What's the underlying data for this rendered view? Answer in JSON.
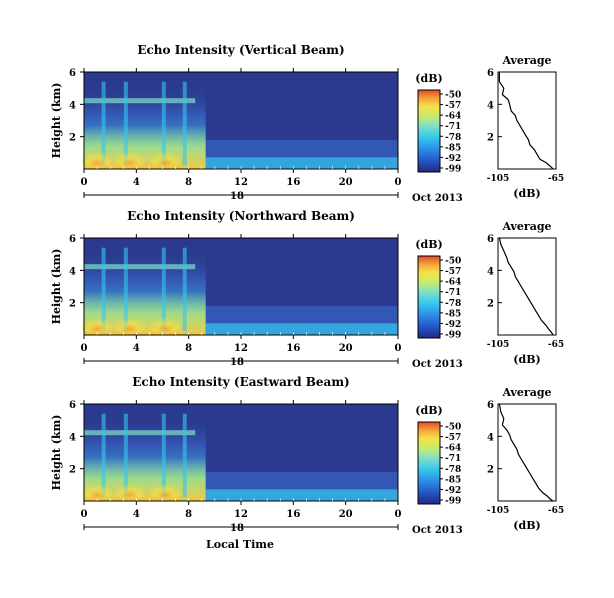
{
  "figure": {
    "colorbar_unit": "(dB)",
    "colorbar_ticks": [
      "-50",
      "-57",
      "-64",
      "-71",
      "-78",
      "-85",
      "-92",
      "-99"
    ],
    "date_label": "Oct 2013",
    "day_label": "18",
    "x_axis_title": "Local Time",
    "y_axis_title": "Height (km)",
    "avg_title": "Average",
    "avg_xlabel": "(dB)"
  },
  "colors": {
    "background_low": "#2b3a8f",
    "colormap": [
      "#222a80",
      "#2456c8",
      "#2d8fe6",
      "#34c7ee",
      "#7fe0c8",
      "#c8ec6a",
      "#f4e24a",
      "#f4a23a",
      "#e44a26"
    ]
  },
  "chart_data": [
    {
      "type": "heatmap",
      "title": "Echo Intensity (Vertical Beam)",
      "xlabel": "",
      "ylabel": "Height (km)",
      "x_ticks": [
        "0",
        "4",
        "8",
        "12",
        "16",
        "20",
        "0"
      ],
      "y_ticks": [
        "6",
        "4",
        "2"
      ],
      "xlim": [
        0,
        24
      ],
      "ylim": [
        0,
        6
      ],
      "colorbar": {
        "label": "(dB)",
        "range": [
          -99,
          -50
        ]
      }
    },
    {
      "type": "heatmap",
      "title": "Echo Intensity (Northward Beam)",
      "xlabel": "",
      "ylabel": "Height (km)",
      "x_ticks": [
        "0",
        "4",
        "8",
        "12",
        "16",
        "20",
        "0"
      ],
      "y_ticks": [
        "6",
        "4",
        "2"
      ],
      "xlim": [
        0,
        24
      ],
      "ylim": [
        0,
        6
      ],
      "colorbar": {
        "label": "(dB)",
        "range": [
          -99,
          -50
        ]
      }
    },
    {
      "type": "heatmap",
      "title": "Echo Intensity (Eastward Beam)",
      "xlabel": "Local Time",
      "ylabel": "Height (km)",
      "x_ticks": [
        "0",
        "4",
        "8",
        "12",
        "16",
        "20",
        "0"
      ],
      "y_ticks": [
        "6",
        "4",
        "2"
      ],
      "xlim": [
        0,
        24
      ],
      "ylim": [
        0,
        6
      ],
      "colorbar": {
        "label": "(dB)",
        "range": [
          -99,
          -50
        ]
      }
    },
    {
      "type": "line",
      "title": "Average",
      "xlabel": "(dB)",
      "ylabel": "",
      "x_ticks": [
        "-105",
        "-65"
      ],
      "y_ticks": [
        "6",
        "4",
        "2"
      ],
      "xlim": [
        -105,
        -65
      ],
      "ylim": [
        0,
        6
      ],
      "x": [
        -104,
        -104,
        -101,
        -102,
        -98,
        -97,
        -96,
        -93,
        -92,
        -90,
        -88,
        -86,
        -84,
        -83,
        -80,
        -78,
        -76,
        -72,
        -70,
        -68,
        -67
      ],
      "y": [
        6.0,
        5.4,
        5.0,
        4.6,
        4.3,
        4.0,
        3.6,
        3.3,
        3.0,
        2.7,
        2.4,
        2.1,
        1.8,
        1.5,
        1.2,
        0.9,
        0.6,
        0.4,
        0.25,
        0.1,
        0.0
      ]
    },
    {
      "type": "line",
      "title": "Average",
      "xlabel": "(dB)",
      "ylabel": "",
      "x_ticks": [
        "-105",
        "-65"
      ],
      "y_ticks": [
        "6",
        "4",
        "2"
      ],
      "xlim": [
        -105,
        -65
      ],
      "ylim": [
        0,
        6
      ],
      "x": [
        -104,
        -103,
        -101,
        -99,
        -98,
        -96,
        -94,
        -93,
        -91,
        -89,
        -87,
        -85,
        -83,
        -81,
        -79,
        -77,
        -75,
        -72,
        -70,
        -68,
        -67
      ],
      "y": [
        6.0,
        5.6,
        5.2,
        4.8,
        4.5,
        4.2,
        3.9,
        3.6,
        3.3,
        3.0,
        2.7,
        2.4,
        2.1,
        1.8,
        1.5,
        1.2,
        0.9,
        0.6,
        0.35,
        0.15,
        0.0
      ]
    },
    {
      "type": "line",
      "title": "Average",
      "xlabel": "(dB)",
      "ylabel": "",
      "x_ticks": [
        "-105",
        "-65"
      ],
      "y_ticks": [
        "6",
        "4",
        "2"
      ],
      "xlim": [
        -105,
        -65
      ],
      "ylim": [
        0,
        6
      ],
      "x": [
        -104,
        -103,
        -101,
        -102,
        -99,
        -97,
        -96,
        -94,
        -92,
        -91,
        -89,
        -87,
        -85,
        -83,
        -81,
        -79,
        -77,
        -74,
        -71,
        -69,
        -67
      ],
      "y": [
        6.0,
        5.5,
        5.1,
        4.7,
        4.4,
        4.1,
        3.8,
        3.5,
        3.2,
        2.9,
        2.6,
        2.3,
        2.0,
        1.7,
        1.4,
        1.1,
        0.8,
        0.5,
        0.3,
        0.12,
        0.0
      ]
    }
  ]
}
